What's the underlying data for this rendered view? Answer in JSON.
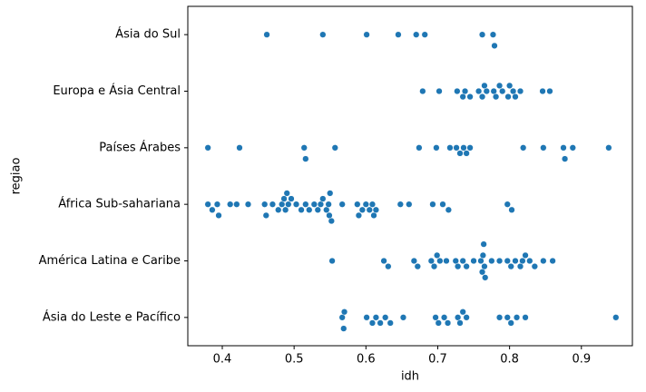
{
  "chart_data": {
    "type": "swarm",
    "xlabel": "idh",
    "ylabel": "regiao",
    "xlim": [
      0.352,
      0.971
    ],
    "xticks": [
      0.4,
      0.5,
      0.6,
      0.7,
      0.8,
      0.9
    ],
    "color": "#1f77b4",
    "grid": false,
    "categories": [
      "Ásia do Sul",
      "Europa e Ásia Central",
      "Países Árabes",
      "África Sub-sahariana",
      "América Latina e Caribe",
      "Ásia do Leste e Pacífico"
    ],
    "values": [
      [
        0.462,
        0.54,
        0.601,
        0.645,
        0.67,
        0.682,
        0.762,
        0.777,
        0.779
      ],
      [
        0.679,
        0.702,
        0.727,
        0.735,
        0.738,
        0.745,
        0.757,
        0.762,
        0.765,
        0.768,
        0.778,
        0.781,
        0.786,
        0.79,
        0.798,
        0.8,
        0.805,
        0.808,
        0.815,
        0.846,
        0.856
      ],
      [
        0.38,
        0.424,
        0.514,
        0.516,
        0.557,
        0.674,
        0.698,
        0.717,
        0.726,
        0.731,
        0.736,
        0.74,
        0.745,
        0.819,
        0.847,
        0.875,
        0.877,
        0.888,
        0.938
      ],
      [
        0.38,
        0.386,
        0.393,
        0.395,
        0.411,
        0.42,
        0.436,
        0.459,
        0.461,
        0.47,
        0.478,
        0.483,
        0.486,
        0.488,
        0.49,
        0.492,
        0.496,
        0.503,
        0.51,
        0.516,
        0.521,
        0.528,
        0.533,
        0.537,
        0.54,
        0.545,
        0.548,
        0.549,
        0.55,
        0.552,
        0.567,
        0.588,
        0.59,
        0.595,
        0.6,
        0.605,
        0.609,
        0.611,
        0.614,
        0.648,
        0.66,
        0.693,
        0.707,
        0.715,
        0.797,
        0.803
      ],
      [
        0.553,
        0.625,
        0.631,
        0.667,
        0.672,
        0.691,
        0.695,
        0.699,
        0.703,
        0.712,
        0.725,
        0.728,
        0.735,
        0.74,
        0.75,
        0.76,
        0.762,
        0.763,
        0.764,
        0.765,
        0.766,
        0.775,
        0.786,
        0.797,
        0.802,
        0.808,
        0.815,
        0.818,
        0.822,
        0.828,
        0.835,
        0.847,
        0.86
      ],
      [
        0.567,
        0.569,
        0.57,
        0.601,
        0.609,
        0.614,
        0.62,
        0.627,
        0.634,
        0.652,
        0.697,
        0.701,
        0.709,
        0.714,
        0.728,
        0.731,
        0.735,
        0.74,
        0.786,
        0.797,
        0.802,
        0.81,
        0.822,
        0.948
      ]
    ]
  }
}
